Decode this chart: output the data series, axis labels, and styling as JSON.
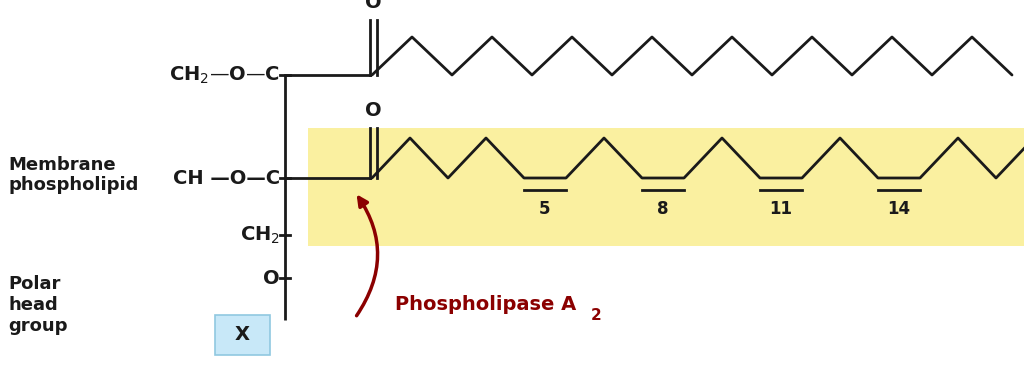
{
  "bg_color": "#ffffff",
  "yellow_color": "#FAF0A0",
  "line_color": "#1a1a1a",
  "line_width": 2.0,
  "phospholipase_color": "#8B0000",
  "phospholipase_text": "Phospholipase A",
  "phospholipase_sub": "2",
  "numbers": [
    "5",
    "8",
    "11",
    "14"
  ],
  "left_label1_text": "Membrane\nphospholipid",
  "left_label2_text": "Polar\nhead\ngroup"
}
